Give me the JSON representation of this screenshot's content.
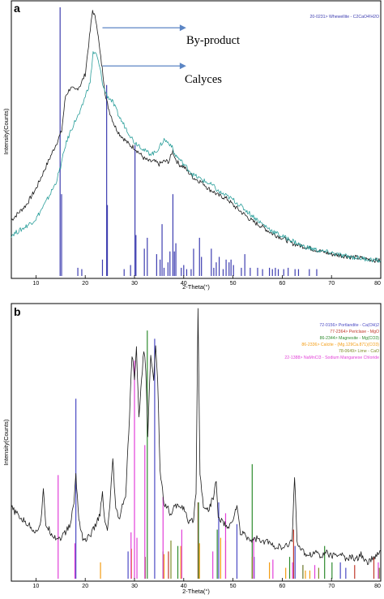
{
  "chart_data": [
    {
      "type": "line",
      "panel_label": "a",
      "xlabel": "2-Theta(°)",
      "ylabel": "Intensity(Counts)",
      "xlim": [
        5,
        80
      ],
      "xticks": [
        10,
        20,
        30,
        40,
        50,
        60,
        70,
        80
      ],
      "ylim": [
        0,
        100
      ],
      "grid": false,
      "legend_position": "top-right",
      "legend": [
        {
          "label": "20-0231> Whewellite - C2CaO4!H2O",
          "color": "#3d3db0"
        }
      ],
      "annotations": [
        {
          "text": "By-product",
          "arrow_from_x": 23.5,
          "arrow_to_x": 40.5,
          "y": 91
        },
        {
          "text": "Calyces",
          "arrow_from_x": 23.5,
          "arrow_to_x": 40.5,
          "y": 77
        }
      ],
      "series": [
        {
          "name": "By-product",
          "color": "#1a1a1a",
          "x": [
            5,
            8,
            10,
            12,
            14,
            15.2,
            16,
            17,
            18,
            19,
            20,
            20.7,
            21.5,
            22.3,
            23,
            23.6,
            24.2,
            25,
            26,
            27,
            28,
            29,
            30,
            31,
            32,
            33,
            34,
            35,
            36,
            37,
            37.8,
            38.3,
            39,
            40,
            41,
            42,
            43,
            44,
            45,
            46,
            47,
            48,
            49,
            50,
            52,
            54,
            56,
            58,
            60,
            62,
            64,
            66,
            68,
            70,
            72,
            74,
            76,
            78,
            80
          ],
          "y": [
            20.5,
            26,
            32,
            40,
            48,
            53,
            66,
            69,
            68,
            70,
            74,
            85,
            97.5,
            93,
            82,
            74,
            65,
            60,
            55,
            52,
            50,
            48,
            47,
            45,
            43,
            42,
            42,
            41,
            42,
            42,
            46,
            43,
            41,
            40,
            38,
            36,
            35,
            34,
            32,
            31,
            29.5,
            29,
            28,
            26,
            23,
            20,
            18,
            15.5,
            14,
            12,
            11,
            10,
            9,
            8,
            7.5,
            7,
            6.5,
            6,
            5.5
          ]
        },
        {
          "name": "Calyces",
          "color": "#2b9f9b",
          "x": [
            5,
            7,
            9,
            10,
            12,
            14,
            15,
            16,
            17,
            18,
            19,
            20,
            21,
            21.6,
            22.3,
            23,
            23.7,
            24.5,
            25.5,
            26,
            27,
            28,
            29,
            30,
            31,
            32,
            33,
            34,
            35,
            36,
            36.8,
            37.5,
            38,
            39,
            40,
            41,
            42,
            43,
            44,
            45,
            46,
            47,
            48,
            50,
            52,
            54,
            56,
            58,
            60,
            62,
            64,
            66,
            68,
            70,
            72,
            74,
            76,
            78,
            80
          ],
          "y": [
            15,
            17,
            19.5,
            21,
            27,
            34,
            40,
            48,
            53,
            57,
            60,
            66,
            71,
            82,
            81,
            76,
            69,
            66,
            64,
            62,
            58,
            55,
            52,
            49,
            48,
            46,
            45,
            45,
            47,
            50,
            49,
            48,
            45,
            43,
            41,
            39,
            37,
            36,
            35,
            34,
            33,
            31,
            30,
            28,
            25,
            22,
            19,
            16.5,
            14.5,
            13,
            11,
            10,
            9,
            8.5,
            7.5,
            7,
            6.5,
            6,
            5.5
          ]
        }
      ],
      "reference_sticks": [
        {
          "name": "Whewellite",
          "color": "#3d3db0",
          "x": [
            14.9,
            15.2,
            18.5,
            19.3,
            23.5,
            24.35,
            24.5,
            27.9,
            29.2,
            30.1,
            30.3,
            32.0,
            32.6,
            34.5,
            35.2,
            35.6,
            36.0,
            36.8,
            37.2,
            37.8,
            38.1,
            38.4,
            39.5,
            40.0,
            40.6,
            41.5,
            42.0,
            43.2,
            43.6,
            45.6,
            46.1,
            46.6,
            47.2,
            48.0,
            48.6,
            49.2,
            49.6,
            50.1,
            51.7,
            52.4,
            53.5,
            55.0,
            56.0,
            57.4,
            58.0,
            58.6,
            59.2,
            60.3,
            61.2,
            62.6,
            63.3,
            65.5,
            67.0
          ],
          "y": [
            98.5,
            30,
            3,
            2.5,
            6,
            70,
            26,
            2.5,
            4,
            48,
            15,
            10,
            14,
            8,
            6,
            19,
            3,
            5,
            9,
            30,
            9,
            12,
            3,
            4,
            2.5,
            2.5,
            10,
            14,
            7,
            10,
            3,
            5,
            7,
            2.5,
            6,
            5,
            6,
            4,
            3,
            8,
            3,
            3,
            2.5,
            3,
            2.5,
            3,
            2.5,
            2.5,
            3,
            2.5,
            2.5,
            2.5,
            2.5
          ]
        }
      ]
    },
    {
      "type": "line",
      "panel_label": "b",
      "xlabel": "2-Theta(°)",
      "ylabel": "Intensity(Counts)",
      "xlim": [
        5,
        80
      ],
      "xticks": [
        10,
        20,
        30,
        40,
        50,
        60,
        70,
        80
      ],
      "ylim": [
        0,
        100
      ],
      "grid": false,
      "legend_position": "top-right",
      "legend": [
        {
          "label": "72-0156> Portlandite - Ca(OH)2",
          "color": "#4a49c4"
        },
        {
          "label": "77-2364> Periclase - MgO",
          "color": "#c0392b"
        },
        {
          "label": "86-2344> Magnesite - Mg(CO3)",
          "color": "#2e8b2e"
        },
        {
          "label": "86-2336> Calcite - (Mg.129Ca.871)(CO3)",
          "color": "#f39c12"
        },
        {
          "label": "78-0649> Lime - CaO",
          "color": "#7f8c2a"
        },
        {
          "label": "22-1388> NaMnCl3 - Sodium Manganese Chloride",
          "color": "#e23fd8"
        }
      ],
      "series": [
        {
          "name": "",
          "color": "#1a1a1a",
          "x": [
            5,
            7,
            9,
            10,
            11,
            11.5,
            12,
            13,
            14,
            15,
            16,
            17,
            17.7,
            18.1,
            18.7,
            19.5,
            20,
            21,
            22,
            23,
            23.5,
            24,
            24.5,
            25,
            25.6,
            26.2,
            27,
            27.7,
            28.2,
            29,
            29.5,
            30,
            30.4,
            30.9,
            31.3,
            31.9,
            32.3,
            32.7,
            33.3,
            33.9,
            34.3,
            34.7,
            35.2,
            36,
            37,
            37.5,
            38,
            39,
            40,
            41,
            42,
            42.5,
            42.9,
            43.3,
            44,
            45,
            46,
            46.6,
            47,
            48,
            49,
            50,
            50.8,
            51.5,
            52,
            53,
            54,
            55,
            56,
            57,
            58,
            59,
            60,
            61,
            62,
            62.5,
            63,
            64,
            65,
            66,
            67,
            68,
            69,
            70,
            71,
            72,
            73,
            74,
            75,
            76,
            77,
            78,
            79,
            80
          ],
          "y": [
            26,
            22,
            19,
            17,
            21,
            32,
            20,
            17,
            15,
            15,
            17,
            20,
            28,
            38,
            22,
            15,
            14,
            16,
            19,
            24,
            31,
            20,
            18,
            26,
            44,
            25,
            22,
            28,
            30,
            60,
            82,
            74,
            84,
            60,
            69,
            84,
            77,
            52,
            83,
            72,
            86,
            73,
            40,
            28,
            25,
            23,
            26,
            27,
            26,
            20,
            22,
            32,
            100,
            38,
            27,
            25,
            30,
            36,
            22,
            21,
            18,
            22,
            27,
            16,
            17,
            15,
            14,
            15,
            13,
            14,
            12,
            12,
            11,
            12,
            14,
            38,
            14,
            10,
            9,
            9,
            10,
            8,
            10,
            8,
            9,
            9,
            7,
            8,
            7,
            9,
            6,
            7,
            8,
            10
          ]
        }
      ],
      "reference_sticks": [
        {
          "name": "Portlandite",
          "color": "#4a49c4",
          "x": [
            18.1,
            28.7,
            34.1,
            47.1,
            50.8,
            54.3,
            62.6,
            64.2,
            71.8,
            72.9
          ],
          "y": [
            66,
            10,
            88,
            28,
            20,
            8,
            12,
            5,
            6,
            4
          ]
        },
        {
          "name": "Periclase",
          "color": "#c0392b",
          "x": [
            36.9,
            42.9,
            62.3,
            74.7,
            78.6
          ],
          "y": [
            10,
            28,
            18,
            5,
            8
          ]
        },
        {
          "name": "Magnesite",
          "color": "#2e8b2e",
          "x": [
            32.6,
            35.8,
            38.8,
            43.0,
            46.8,
            53.9,
            61.5,
            68.6,
            70.1
          ],
          "y": [
            91,
            10,
            12,
            28,
            18,
            42,
            8,
            12,
            6
          ]
        },
        {
          "name": "Calcite",
          "color": "#f39c12",
          "x": [
            23.1,
            29.4,
            36.0,
            39.4,
            43.2,
            47.5,
            48.5,
            57.4,
            60.7,
            64.7,
            65.6
          ],
          "y": [
            6,
            11,
            9,
            12,
            13,
            15,
            14,
            6,
            4,
            3,
            3
          ]
        },
        {
          "name": "Lime",
          "color": "#7f8c2a",
          "x": [
            32.2,
            37.4,
            53.9,
            64.2,
            67.4,
            79.7
          ],
          "y": [
            8,
            14,
            8,
            5,
            4,
            4
          ]
        },
        {
          "name": "NaMnCl3",
          "color": "#e23fd8",
          "x": [
            14.5,
            17.9,
            29.3,
            30.0,
            30.5,
            32.1,
            35.8,
            39.6,
            45.9,
            48.5,
            54.2,
            58.1,
            62.1,
            66.6,
            79.5
          ],
          "y": [
            38,
            13,
            17,
            80,
            15,
            49,
            30,
            18,
            10,
            24,
            15,
            7,
            6,
            5,
            6
          ]
        }
      ]
    }
  ]
}
